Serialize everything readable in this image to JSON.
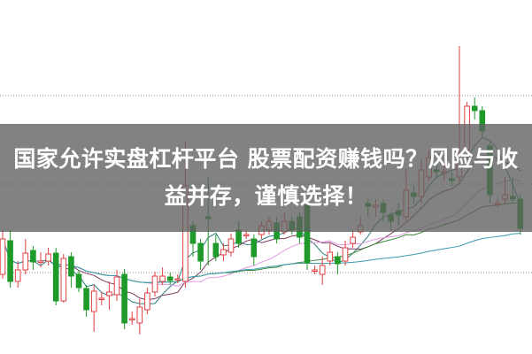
{
  "overlay": {
    "title_line1": "国家允许实盘杠杆平台 股票配资赚钱吗？风险与收",
    "title_line2": "益并存，谨慎选择！"
  },
  "chart_data": {
    "type": "candlestick",
    "title": "",
    "xlabel": "",
    "ylabel": "",
    "ylim": [
      0,
      40
    ],
    "grid": "dotted horizontal",
    "up_color": "#e04040",
    "down_color": "#1f9a2a",
    "ma_colors": [
      "#2f7f80",
      "#7a3a60",
      "#e49ae4",
      "#3a8a3a",
      "#3a9ab0"
    ],
    "ma_periods": [
      5,
      10,
      20,
      30,
      60
    ],
    "gridlines": [
      29.2,
      19.2,
      9.2
    ],
    "ohlc": [
      [
        9.0,
        14,
        8.5,
        13.0
      ],
      [
        12.8,
        14,
        7.5,
        8.2
      ],
      [
        8.2,
        10.5,
        7.5,
        9.5
      ],
      [
        9.5,
        13,
        9,
        11.4
      ],
      [
        11.7,
        12.2,
        9.5,
        10.4
      ],
      [
        10.5,
        11.5,
        9.8,
        10.5
      ],
      [
        10.5,
        12,
        10,
        11.3
      ],
      [
        11.4,
        12,
        5.5,
        6.0
      ],
      [
        6.0,
        11.3,
        5.8,
        10.8
      ],
      [
        11.0,
        11.5,
        7.5,
        8.8
      ],
      [
        9.0,
        9.5,
        7,
        7.5
      ],
      [
        7.4,
        7.8,
        4.2,
        5.0
      ],
      [
        4.8,
        7.8,
        2.5,
        7.1
      ],
      [
        6.3,
        7,
        5.5,
        6.3
      ],
      [
        6.6,
        8.2,
        5,
        7.0
      ],
      [
        6.7,
        9.5,
        6,
        8.7
      ],
      [
        9.0,
        9.6,
        2.8,
        3.5
      ],
      [
        4.0,
        4.8,
        3.3,
        4.0
      ],
      [
        3.5,
        6.2,
        2.2,
        5.3
      ],
      [
        5.0,
        7.5,
        4.5,
        6.9
      ],
      [
        7.0,
        9.3,
        6.5,
        8.8
      ],
      [
        8.2,
        9.8,
        7.8,
        8.8
      ],
      [
        8.7,
        9.2,
        7.8,
        8.3
      ],
      [
        8.5,
        9,
        8,
        8.5
      ],
      [
        8.2,
        24,
        7.5,
        19.0
      ],
      [
        14.5,
        15,
        11,
        12.5
      ],
      [
        12.5,
        13,
        9.5,
        10.5
      ],
      [
        15.5,
        20,
        10,
        15.3
      ],
      [
        12.5,
        13.5,
        10.5,
        11.0
      ],
      [
        11.2,
        12.5,
        10.5,
        11.8
      ],
      [
        11.5,
        13.6,
        11,
        13.0
      ],
      [
        14.0,
        15,
        12,
        12.5
      ],
      [
        13.5,
        14,
        13,
        13.5
      ],
      [
        13,
        13.5,
        10,
        11
      ],
      [
        13.5,
        15,
        13,
        14.5
      ],
      [
        14,
        15.5,
        13.5,
        15
      ],
      [
        14.8,
        15.5,
        12.5,
        13
      ],
      [
        13.8,
        16,
        13.5,
        15
      ],
      [
        15,
        15.5,
        13.5,
        14
      ],
      [
        15.5,
        16,
        12.5,
        13.2
      ],
      [
        16.8,
        17.2,
        9.5,
        10.3
      ],
      [
        9.5,
        10,
        9,
        9.5
      ],
      [
        9,
        11,
        7.8,
        10
      ],
      [
        10.5,
        12.5,
        10,
        11.5
      ],
      [
        11,
        11.5,
        9,
        10.2
      ],
      [
        10.5,
        12.8,
        10,
        12
      ],
      [
        12.5,
        14,
        12,
        13.2
      ],
      [
        13.8,
        15.5,
        13.5,
        14.5
      ],
      [
        17,
        17.5,
        15.5,
        16.7
      ],
      [
        16.6,
        17.5,
        15.5,
        16.8
      ],
      [
        17,
        17.5,
        15,
        16
      ],
      [
        15.7,
        16,
        14,
        15
      ],
      [
        16.2,
        17,
        14.5,
        15.7
      ],
      [
        15.5,
        21,
        15,
        18.5
      ],
      [
        18.2,
        19,
        17,
        17.8
      ],
      [
        17.8,
        22,
        17,
        20.8
      ],
      [
        20,
        23,
        19.5,
        22.2
      ],
      [
        20.8,
        21.5,
        20,
        20.6
      ],
      [
        20.5,
        21.5,
        19.5,
        20.6
      ],
      [
        19.8,
        20.5,
        19,
        19.6
      ],
      [
        20,
        34.8,
        19.5,
        22
      ],
      [
        23,
        28.5,
        22.5,
        28
      ],
      [
        28,
        29,
        26.5,
        27.5
      ],
      [
        27.5,
        28,
        24.5,
        25.2
      ],
      [
        23.5,
        24,
        17,
        18
      ],
      [
        17,
        17.5,
        16.5,
        17
      ],
      [
        17.5,
        20,
        17,
        18
      ],
      [
        17.8,
        20,
        17,
        17.5
      ],
      [
        17.5,
        18,
        13.5,
        14.2
      ]
    ]
  }
}
